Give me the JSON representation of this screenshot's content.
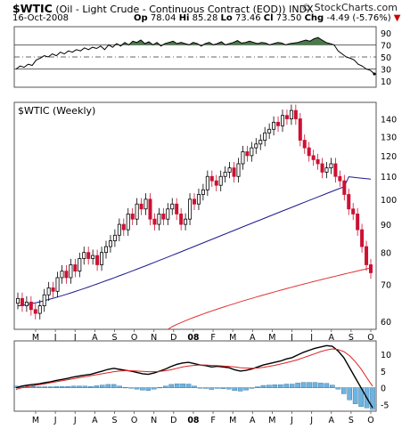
{
  "header": {
    "symbol": "$WTIC",
    "name": "(Oil - Light Crude - Continuous Contract (EOD))",
    "exchange": "INDX",
    "date": "16-Oct-2008",
    "open_label": "Op",
    "open": "78.04",
    "high_label": "Hi",
    "high": "85.28",
    "low_label": "Lo",
    "low": "73.46",
    "close_label": "Cl",
    "close": "73.50",
    "change_label": "Chg",
    "change": "-4.49 (-5.76%)",
    "brand": "© StockCharts.com"
  },
  "chart_data": [
    {
      "type": "line",
      "panel": "rsi",
      "ylim": [
        0,
        100
      ],
      "y_ticks": [
        "90",
        "70",
        "50",
        "30",
        "10"
      ],
      "reference_lines": [
        70,
        50,
        30
      ],
      "series": [
        {
          "values": [
            30,
            35,
            33,
            38,
            36,
            45,
            48,
            52,
            50,
            55,
            52,
            58,
            55,
            60,
            58,
            62,
            60,
            65,
            62,
            66,
            64,
            68,
            62,
            70,
            66,
            72,
            68,
            74,
            70,
            76,
            74,
            78,
            72,
            75,
            70,
            74,
            68,
            72,
            74,
            76,
            72,
            74,
            72,
            70,
            74,
            72,
            68,
            72,
            74,
            70,
            72,
            75,
            70,
            72,
            74,
            77,
            73,
            74,
            76,
            74,
            72,
            74,
            73,
            70,
            72,
            74,
            73,
            70,
            72,
            73,
            74,
            76,
            78,
            76,
            80,
            82,
            78,
            74,
            72,
            70,
            60,
            55,
            50,
            48,
            45,
            38,
            35,
            30,
            28,
            22
          ]
        }
      ],
      "colors": {
        "line": "#000000",
        "overbought_fill": "#4a7a4a"
      }
    },
    {
      "type": "ohlc",
      "panel": "price",
      "title": "$WTIC (Weekly)",
      "y_scale": "log",
      "ylim": [
        58,
        150
      ],
      "y_ticks": [
        "140",
        "130",
        "120",
        "110",
        "100",
        "90",
        "80",
        "70",
        "60"
      ],
      "x_tick_labels": [
        "M",
        "J",
        "J",
        "A",
        "S",
        "O",
        "N",
        "D",
        "08",
        "F",
        "M",
        "A",
        "M",
        "J",
        "J",
        "A",
        "S",
        "O"
      ],
      "weekly_closes": [
        66,
        64,
        65,
        63,
        62,
        64,
        67,
        69,
        68,
        72,
        74,
        72,
        76,
        74,
        78,
        80,
        78,
        79,
        76,
        80,
        82,
        84,
        86,
        90,
        88,
        94,
        92,
        98,
        96,
        100,
        92,
        90,
        94,
        92,
        96,
        98,
        94,
        90,
        92,
        100,
        98,
        102,
        104,
        110,
        108,
        106,
        110,
        112,
        114,
        110,
        116,
        122,
        120,
        124,
        126,
        128,
        132,
        134,
        138,
        136,
        142,
        140,
        145,
        140,
        128,
        124,
        120,
        118,
        116,
        112,
        114,
        116,
        110,
        108,
        102,
        96,
        94,
        88,
        82,
        76,
        73.5
      ],
      "moving_averages": [
        {
          "period": 50,
          "color": "#1a1a8c",
          "ends": [
            64,
            110
          ]
        },
        {
          "period": 200,
          "color": "#e03030",
          "ends": [
            58,
            75
          ]
        }
      ],
      "colors": {
        "up": "#000000",
        "down": "#cc1133"
      }
    },
    {
      "type": "line",
      "panel": "macd",
      "y_ticks": [
        "10",
        "5",
        "0",
        "-5"
      ],
      "ylim": [
        -7,
        14
      ],
      "series": [
        {
          "role": "macd",
          "color": "#000000",
          "values": [
            0,
            0.5,
            0.8,
            1,
            1.2,
            1.5,
            1.8,
            2.2,
            2.5,
            2.8,
            3.2,
            3.5,
            3.8,
            4,
            4.5,
            5,
            5.5,
            5.8,
            5.5,
            5.2,
            5,
            4.6,
            4.2,
            4,
            4.4,
            5,
            5.6,
            6.4,
            7,
            7.4,
            7.6,
            7.2,
            6.8,
            6.6,
            6.2,
            6.4,
            6.2,
            6,
            5.4,
            5,
            5.2,
            5.6,
            6.2,
            6.8,
            7.2,
            7.6,
            8,
            8.6,
            9,
            9.8,
            10.6,
            11.2,
            11.8,
            12.2,
            12.6,
            12.4,
            11,
            9,
            6,
            3,
            0,
            -3,
            -6
          ]
        },
        {
          "role": "signal",
          "color": "#dd2222",
          "values": [
            -0.5,
            0,
            0.3,
            0.6,
            0.9,
            1.2,
            1.5,
            1.8,
            2.1,
            2.4,
            2.7,
            3,
            3.3,
            3.6,
            3.9,
            4.2,
            4.5,
            4.8,
            5,
            5.1,
            5.1,
            5,
            4.9,
            4.8,
            4.8,
            4.9,
            5.1,
            5.4,
            5.8,
            6.2,
            6.5,
            6.7,
            6.8,
            6.8,
            6.7,
            6.6,
            6.5,
            6.4,
            6.2,
            6,
            5.9,
            5.8,
            5.9,
            6.1,
            6.4,
            6.7,
            7.1,
            7.5,
            7.9,
            8.4,
            9,
            9.6,
            10.2,
            10.8,
            11.3,
            11.6,
            11.4,
            10.8,
            9.6,
            7.8,
            5.6,
            3,
            0.5
          ]
        }
      ],
      "histogram_color": "#6fb3e0"
    }
  ]
}
